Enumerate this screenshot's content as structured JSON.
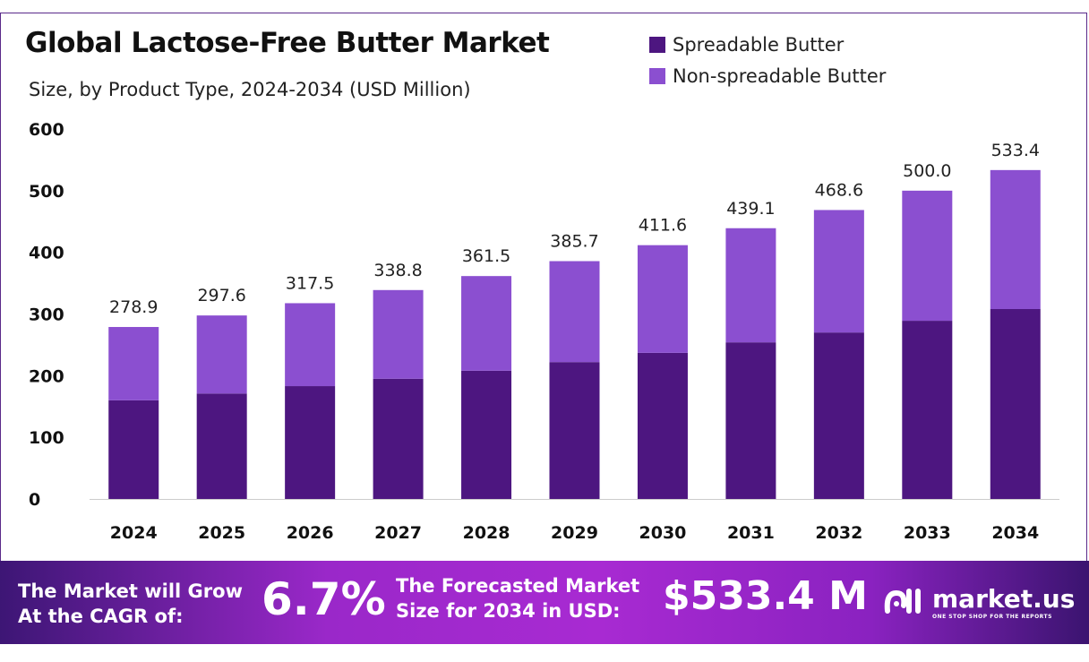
{
  "chart_data": {
    "type": "bar",
    "stacked": true,
    "title": "Global Lactose-Free Butter Market",
    "subtitle": "Size, by Product Type, 2024-2034 (USD Million)",
    "categories": [
      "2024",
      "2025",
      "2026",
      "2027",
      "2028",
      "2029",
      "2030",
      "2031",
      "2032",
      "2033",
      "2034"
    ],
    "series": [
      {
        "name": "Spreadable Butter",
        "color": "#4d1680",
        "values": [
          160,
          171,
          183,
          195,
          208,
          222,
          237,
          254,
          270,
          289,
          308
        ]
      },
      {
        "name": "Non-spreadable Butter",
        "color": "#8b4fd0",
        "values": [
          118.9,
          126.6,
          134.5,
          143.8,
          153.5,
          163.7,
          174.6,
          185.1,
          198.6,
          211.0,
          225.4
        ]
      }
    ],
    "totals": [
      "278.9",
      "297.6",
      "317.5",
      "338.8",
      "361.5",
      "385.7",
      "411.6",
      "439.1",
      "468.6",
      "500.0",
      "533.4"
    ],
    "ylim": [
      0,
      600
    ],
    "yticks": [
      "0",
      "100",
      "200",
      "300",
      "400",
      "500",
      "600"
    ],
    "legend": "top-right",
    "grid": false
  },
  "footer": {
    "cagr_label_1": "The Market will Grow",
    "cagr_label_2": "At the CAGR of:",
    "cagr": "6.7%",
    "forecast_label_1": "The Forecasted Market",
    "forecast_label_2": "Size for 2034 in USD:",
    "forecast": "$533.4 M",
    "logo_name": "market.us",
    "logo_tagline": "ONE STOP SHOP FOR THE REPORTS"
  }
}
